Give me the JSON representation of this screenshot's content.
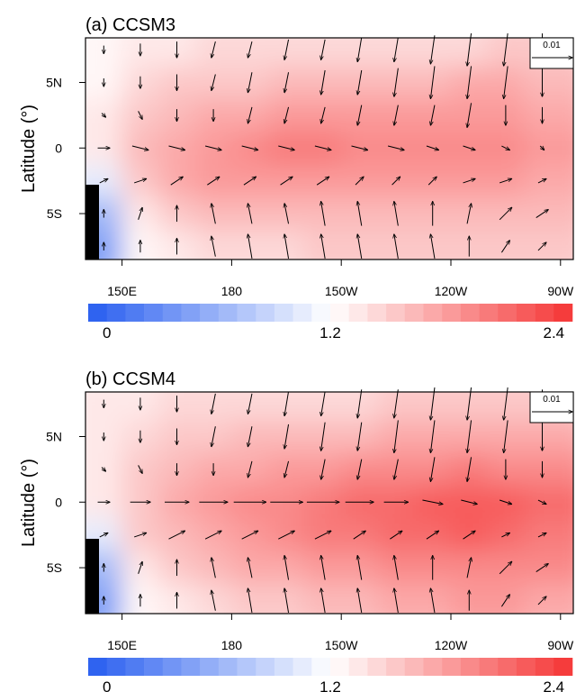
{
  "chart_data": [
    {
      "type": "contour",
      "title": "(a) CCSM3",
      "ylabel": "Latitude (°)",
      "xlim": [
        140,
        273.5
      ],
      "ylim": [
        -8.5,
        8.4
      ],
      "xticks": [
        {
          "value": 150,
          "label": "150E"
        },
        180,
        {
          "value": 210,
          "label": "150W"
        },
        {
          "value": 240,
          "label": "120W"
        },
        {
          "value": 270,
          "label": "90W"
        }
      ],
      "yticks": [
        {
          "value": 5,
          "label": "5N"
        },
        0,
        {
          "value": -5,
          "label": "5S"
        }
      ],
      "colormap": [
        "#2f63f0",
        "#ffffff",
        "#f53c3c"
      ],
      "levels": [
        0,
        0.1,
        0.2,
        0.3,
        0.4,
        0.5,
        0.6,
        0.7,
        0.8,
        0.9,
        1.0,
        1.1,
        1.2,
        1.3,
        1.4,
        1.5,
        1.6,
        1.7,
        1.8,
        1.9,
        2.0,
        2.1,
        2.2,
        2.3,
        2.4
      ],
      "colorbar_labels": [
        0,
        1.2,
        2.4
      ],
      "ref_vector": 0.01,
      "lon": [
        145,
        155,
        165,
        175,
        185,
        195,
        205,
        215,
        225,
        235,
        245,
        255,
        265
      ],
      "lat": [
        7.5,
        5,
        2.5,
        0,
        -2.5,
        -5,
        -7.5
      ],
      "field": [
        [
          1.2,
          1.3,
          1.35,
          1.4,
          1.4,
          1.4,
          1.4,
          1.4,
          1.4,
          1.4,
          1.45,
          1.5,
          1.5
        ],
        [
          1.25,
          1.4,
          1.5,
          1.5,
          1.55,
          1.6,
          1.6,
          1.6,
          1.6,
          1.65,
          1.7,
          1.7,
          1.65
        ],
        [
          1.3,
          1.5,
          1.6,
          1.7,
          1.75,
          1.8,
          1.8,
          1.8,
          1.85,
          1.85,
          1.85,
          1.8,
          1.75
        ],
        [
          1.3,
          1.6,
          1.75,
          1.85,
          1.95,
          2.0,
          2.0,
          1.95,
          1.95,
          1.95,
          1.9,
          1.9,
          1.85
        ],
        [
          1.0,
          1.5,
          1.7,
          1.8,
          1.85,
          1.85,
          1.85,
          1.85,
          1.85,
          1.85,
          1.8,
          1.8,
          1.75
        ],
        [
          0.6,
          1.35,
          1.5,
          1.6,
          1.6,
          1.6,
          1.6,
          1.65,
          1.65,
          1.65,
          1.65,
          1.6,
          1.6
        ],
        [
          0.4,
          1.2,
          1.35,
          1.45,
          1.45,
          1.45,
          1.5,
          1.5,
          1.55,
          1.55,
          1.5,
          1.5,
          1.5
        ]
      ],
      "u": [
        [
          0,
          0,
          0,
          -0.001,
          -0.001,
          -0.001,
          -0.001,
          -0.001,
          -0.001,
          -0.001,
          -0.001,
          -0.001,
          0
        ],
        [
          0,
          0,
          0,
          -0.001,
          -0.001,
          -0.001,
          -0.001,
          -0.001,
          -0.001,
          -0.001,
          -0.001,
          -0.001,
          0
        ],
        [
          0.001,
          0.001,
          0,
          0,
          -0.001,
          -0.001,
          -0.001,
          -0.001,
          -0.001,
          -0.001,
          -0.001,
          0,
          0
        ],
        [
          0.003,
          0.004,
          0.004,
          0.004,
          0.004,
          0.004,
          0.004,
          0.004,
          0.004,
          0.003,
          0.003,
          0.002,
          0.001
        ],
        [
          0.002,
          0.003,
          0.003,
          0.003,
          0.003,
          0.003,
          0.003,
          0.002,
          0.002,
          0.002,
          0.003,
          0.003,
          0.002
        ],
        [
          0,
          0.001,
          0,
          -0.001,
          -0.001,
          -0.001,
          -0.001,
          -0.001,
          -0.001,
          0,
          0.001,
          0.003,
          0.003
        ],
        [
          0,
          0,
          0,
          -0.001,
          -0.001,
          -0.001,
          -0.001,
          -0.001,
          -0.001,
          -0.001,
          0,
          0.002,
          0.002
        ]
      ],
      "v": [
        [
          -0.002,
          -0.003,
          -0.004,
          -0.004,
          -0.004,
          -0.005,
          -0.005,
          -0.006,
          -0.006,
          -0.007,
          -0.008,
          -0.008,
          -0.008
        ],
        [
          -0.002,
          -0.003,
          -0.004,
          -0.004,
          -0.005,
          -0.005,
          -0.006,
          -0.006,
          -0.007,
          -0.008,
          -0.008,
          -0.008,
          -0.007
        ],
        [
          -0.001,
          -0.002,
          -0.003,
          -0.003,
          -0.004,
          -0.004,
          -0.004,
          -0.005,
          -0.005,
          -0.005,
          -0.006,
          -0.005,
          -0.004
        ],
        [
          0,
          -0.001,
          -0.001,
          -0.001,
          -0.001,
          -0.001,
          -0.001,
          -0.001,
          -0.001,
          -0.001,
          -0.001,
          -0.001,
          -0.001
        ],
        [
          0.001,
          0.001,
          0.002,
          0.002,
          0.002,
          0.002,
          0.002,
          0.002,
          0.002,
          0.002,
          0.001,
          0.001,
          0.001
        ],
        [
          0.002,
          0.003,
          0.004,
          0.005,
          0.005,
          0.005,
          0.006,
          0.006,
          0.006,
          0.006,
          0.005,
          0.003,
          0.002
        ],
        [
          0.002,
          0.003,
          0.004,
          0.005,
          0.006,
          0.006,
          0.006,
          0.006,
          0.006,
          0.006,
          0.005,
          0.003,
          0.002
        ]
      ]
    },
    {
      "type": "contour",
      "title": "(b) CCSM4",
      "ylabel": "Latitude (°)",
      "xlim": [
        140,
        273.5
      ],
      "ylim": [
        -8.5,
        8.4
      ],
      "xticks": [
        {
          "value": 150,
          "label": "150E"
        },
        180,
        {
          "value": 210,
          "label": "150W"
        },
        {
          "value": 240,
          "label": "120W"
        },
        {
          "value": 270,
          "label": "90W"
        }
      ],
      "yticks": [
        {
          "value": 5,
          "label": "5N"
        },
        0,
        {
          "value": -5,
          "label": "5S"
        }
      ],
      "colormap": [
        "#2f63f0",
        "#ffffff",
        "#f53c3c"
      ],
      "levels": [
        0,
        0.1,
        0.2,
        0.3,
        0.4,
        0.5,
        0.6,
        0.7,
        0.8,
        0.9,
        1.0,
        1.1,
        1.2,
        1.3,
        1.4,
        1.5,
        1.6,
        1.7,
        1.8,
        1.9,
        2.0,
        2.1,
        2.2,
        2.3,
        2.4
      ],
      "colorbar_labels": [
        0,
        1.2,
        2.4
      ],
      "ref_vector": 0.01,
      "lon": [
        145,
        155,
        165,
        175,
        185,
        195,
        205,
        215,
        225,
        235,
        245,
        255,
        265
      ],
      "lat": [
        7.5,
        5,
        2.5,
        0,
        -2.5,
        -5,
        -7.5
      ],
      "field": [
        [
          1.3,
          1.35,
          1.4,
          1.4,
          1.45,
          1.45,
          1.45,
          1.45,
          1.5,
          1.5,
          1.5,
          1.55,
          1.55
        ],
        [
          1.3,
          1.4,
          1.5,
          1.55,
          1.6,
          1.6,
          1.65,
          1.65,
          1.7,
          1.75,
          1.75,
          1.75,
          1.7
        ],
        [
          1.3,
          1.5,
          1.6,
          1.7,
          1.75,
          1.8,
          1.85,
          1.9,
          1.95,
          1.95,
          2.0,
          1.95,
          1.9
        ],
        [
          1.3,
          1.55,
          1.7,
          1.8,
          1.9,
          1.95,
          2.0,
          2.1,
          2.15,
          2.2,
          2.25,
          2.2,
          2.1
        ],
        [
          1.0,
          1.5,
          1.65,
          1.75,
          1.85,
          1.9,
          2.0,
          2.05,
          2.1,
          2.15,
          2.2,
          2.15,
          2.05
        ],
        [
          0.6,
          1.35,
          1.5,
          1.6,
          1.7,
          1.75,
          1.8,
          1.85,
          1.9,
          1.9,
          1.95,
          1.95,
          1.9
        ],
        [
          0.4,
          1.2,
          1.35,
          1.45,
          1.5,
          1.55,
          1.6,
          1.65,
          1.7,
          1.75,
          1.8,
          1.8,
          1.75
        ]
      ],
      "u": [
        [
          0,
          0,
          0,
          -0.001,
          -0.001,
          -0.001,
          -0.001,
          -0.001,
          -0.001,
          -0.001,
          -0.001,
          -0.001,
          0
        ],
        [
          0,
          0,
          0,
          -0.001,
          -0.001,
          -0.001,
          -0.001,
          -0.001,
          -0.001,
          -0.001,
          -0.001,
          -0.001,
          0
        ],
        [
          0.001,
          0.001,
          0,
          0,
          -0.001,
          -0.001,
          -0.001,
          -0.001,
          -0.001,
          -0.001,
          -0.001,
          0,
          0
        ],
        [
          0.003,
          0.005,
          0.006,
          0.007,
          0.008,
          0.008,
          0.008,
          0.007,
          0.006,
          0.005,
          0.004,
          0.003,
          0.002
        ],
        [
          0.002,
          0.003,
          0.004,
          0.004,
          0.004,
          0.004,
          0.004,
          0.003,
          0.003,
          0.003,
          0.003,
          0.002,
          0.002
        ],
        [
          0,
          0.001,
          0,
          -0.001,
          -0.001,
          -0.001,
          -0.001,
          -0.001,
          -0.001,
          0,
          0.001,
          0.003,
          0.003
        ],
        [
          0,
          0,
          0,
          -0.001,
          -0.001,
          -0.001,
          -0.001,
          -0.001,
          -0.001,
          -0.001,
          0,
          0.002,
          0.002
        ]
      ],
      "v": [
        [
          -0.002,
          -0.003,
          -0.004,
          -0.005,
          -0.005,
          -0.006,
          -0.006,
          -0.007,
          -0.007,
          -0.008,
          -0.008,
          -0.008,
          -0.007
        ],
        [
          -0.002,
          -0.003,
          -0.004,
          -0.005,
          -0.005,
          -0.006,
          -0.007,
          -0.007,
          -0.008,
          -0.008,
          -0.008,
          -0.008,
          -0.007
        ],
        [
          -0.001,
          -0.002,
          -0.003,
          -0.003,
          -0.004,
          -0.004,
          -0.005,
          -0.005,
          -0.005,
          -0.006,
          -0.006,
          -0.005,
          -0.004
        ],
        [
          0,
          0,
          0,
          0,
          0,
          0,
          0,
          0,
          0,
          -0.001,
          -0.001,
          -0.001,
          -0.001
        ],
        [
          0.001,
          0.001,
          0.002,
          0.002,
          0.002,
          0.002,
          0.002,
          0.002,
          0.002,
          0.002,
          0.002,
          0.001,
          0.001
        ],
        [
          0.002,
          0.003,
          0.004,
          0.005,
          0.005,
          0.006,
          0.006,
          0.006,
          0.006,
          0.006,
          0.005,
          0.003,
          0.002
        ],
        [
          0.002,
          0.003,
          0.004,
          0.005,
          0.006,
          0.006,
          0.006,
          0.006,
          0.006,
          0.006,
          0.005,
          0.003,
          0.002
        ]
      ]
    }
  ]
}
